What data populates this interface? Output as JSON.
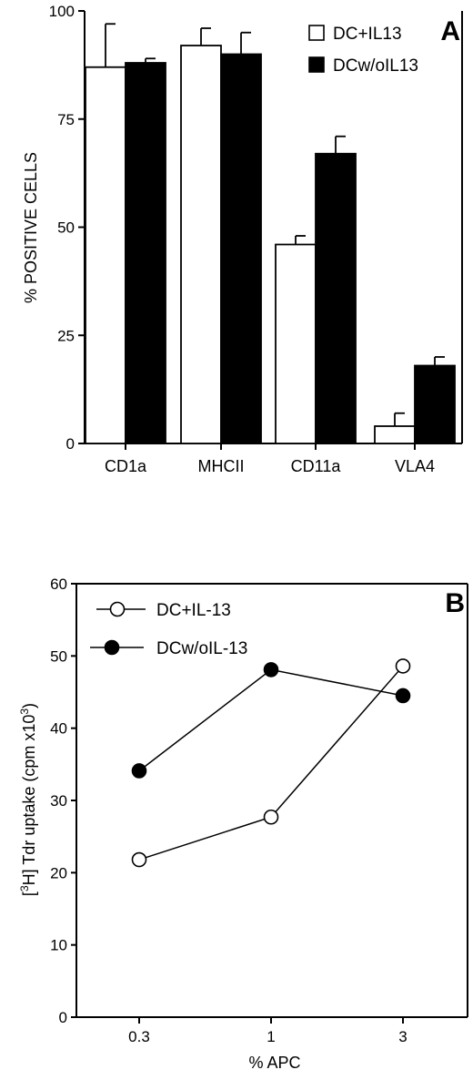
{
  "chart_data": [
    {
      "type": "bar",
      "panel_label": "A",
      "ylabel": "% POSITIVE CELLS",
      "ylim": [
        0,
        100
      ],
      "yticks": [
        "0",
        "25",
        "50",
        "75",
        "100"
      ],
      "categories": [
        "CD1a",
        "MHCII",
        "CD11a",
        "VLA4"
      ],
      "series": [
        {
          "name": "DC+IL13",
          "fill": "#ffffff",
          "values": [
            87,
            92,
            46,
            4
          ],
          "errors": [
            10,
            4,
            2,
            3
          ]
        },
        {
          "name": "DCw/oIL13",
          "fill": "#000000",
          "values": [
            88,
            90,
            67,
            18
          ],
          "errors": [
            1,
            5,
            4,
            2
          ]
        }
      ],
      "legend_position": "top-right",
      "grid": false
    },
    {
      "type": "line",
      "panel_label": "B",
      "ylabel_parts": {
        "pre": "[",
        "sup1": "3",
        "mid": "H] Tdr uptake (cpm x10",
        "sup2": "3",
        "post": ")"
      },
      "xlabel": "% APC",
      "x": [
        "0.3",
        "1",
        "3"
      ],
      "ylim": [
        0,
        60
      ],
      "yticks": [
        "0",
        "10",
        "20",
        "30",
        "40",
        "50",
        "60"
      ],
      "series": [
        {
          "name": "DC+IL-13",
          "marker": "open-circle",
          "values": [
            21.8,
            27.7,
            48.6
          ]
        },
        {
          "name": "DCw/oIL-13",
          "marker": "filled-circle",
          "values": [
            34.1,
            48.1,
            44.5
          ]
        }
      ],
      "legend_position": "top-left",
      "grid": false
    }
  ]
}
